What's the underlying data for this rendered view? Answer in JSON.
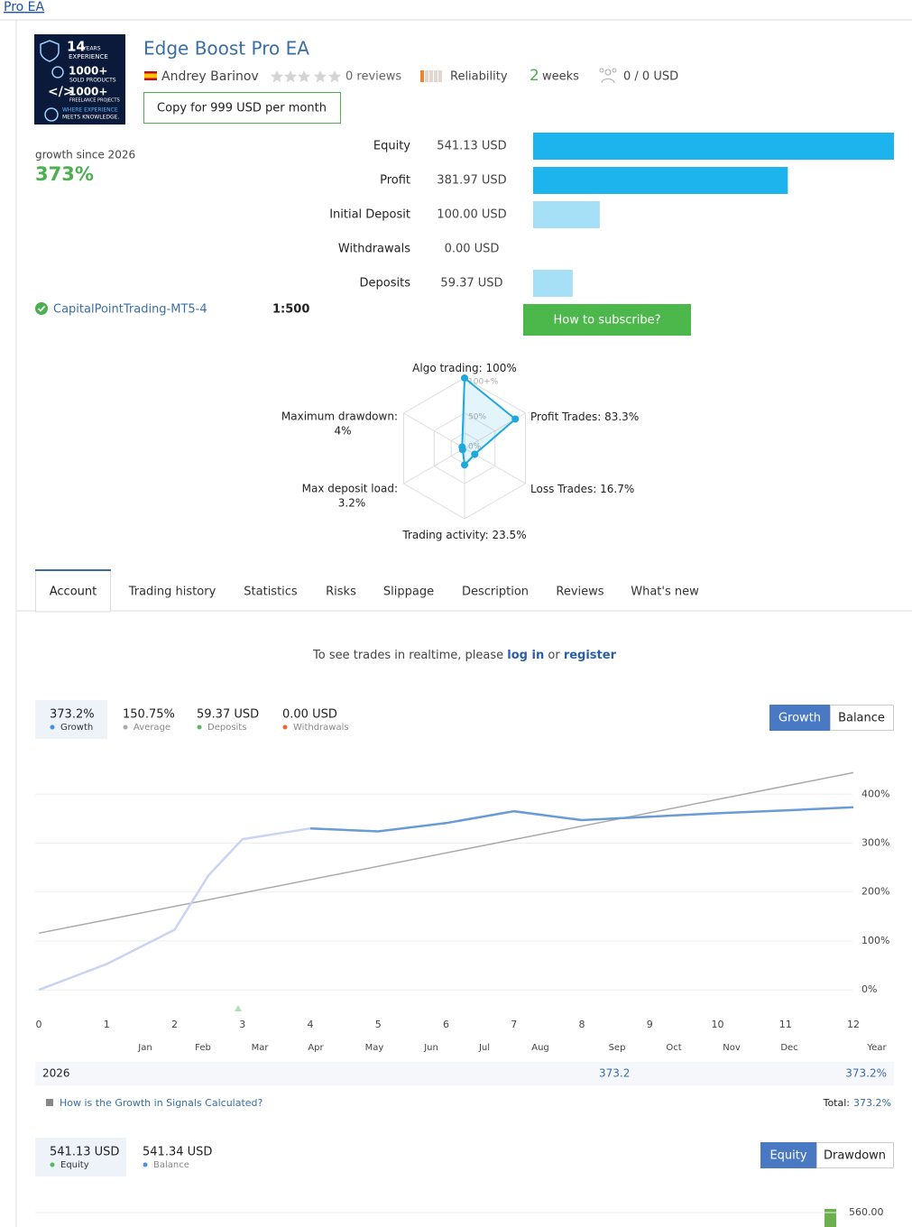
{
  "breadcrumb": "Pro EA",
  "logo": {
    "years_num": "14",
    "years": "YEARS",
    "experience": "EXPERIENCE",
    "sold_num": "1000+",
    "sold": "SOLD PRODUCTS",
    "freelance_num": "1000+",
    "freelance": "FREELANCE PROJECTS",
    "motto_1": "WHERE EXPERIENCE",
    "motto_2": "MEETS KNOWLEDGE."
  },
  "header": {
    "title": "Edge Boost Pro EA",
    "author": "Andrey Barinov",
    "reviews": "0 reviews",
    "reliability": "Reliability",
    "weeks_num": "2",
    "weeks": "weeks",
    "subscribers": "0 / 0 USD",
    "copy_button": "Copy for 999 USD per month"
  },
  "growth_since": {
    "label": "growth since 2026",
    "value": "373%"
  },
  "balance_bars": {
    "rows": [
      {
        "label": "Equity",
        "value": 541.13,
        "value_label": "541.13 USD",
        "color": "#1db4ee"
      },
      {
        "label": "Profit",
        "value": 381.97,
        "value_label": "381.97 USD",
        "color": "#1db4ee"
      },
      {
        "label": "Initial Deposit",
        "value": 100.0,
        "value_label": "100.00 USD",
        "color": "#a6e0f6"
      },
      {
        "label": "Withdrawals",
        "value": 0.0,
        "value_label": "0.00 USD",
        "color": "#a6e0f6"
      },
      {
        "label": "Deposits",
        "value": 59.37,
        "value_label": "59.37 USD",
        "color": "#a6e0f6"
      }
    ]
  },
  "account": {
    "server": "CapitalPointTrading-MT5-4",
    "leverage": "1:500",
    "subscribe_button": "How to subscribe?"
  },
  "radar": {
    "color": "#1fa8dc",
    "ring_labels": [
      "100+%",
      "50%",
      "0%"
    ],
    "axes": [
      {
        "label": "Algo trading:",
        "value": 100,
        "value_label": "100%"
      },
      {
        "label": "Profit Trades:",
        "value": 83.3,
        "value_label": "83.3%"
      },
      {
        "label": "Loss Trades:",
        "value": 16.7,
        "value_label": "16.7%"
      },
      {
        "label": "Trading activity:",
        "value": 23.5,
        "value_label": "23.5%"
      },
      {
        "label": "Max deposit load:",
        "value": 3.2,
        "value_label": "3.2%"
      },
      {
        "label": "Maximum drawdown:",
        "value": 4,
        "value_label": "4%"
      }
    ]
  },
  "tabs": [
    "Account",
    "Trading history",
    "Statistics",
    "Risks",
    "Slippage",
    "Description",
    "Reviews",
    "What's new"
  ],
  "active_tab": 0,
  "login_notice": {
    "text": "To see trades in realtime, please",
    "login": "log in",
    "or": "or",
    "register": "register"
  },
  "growth_summary": {
    "items": [
      {
        "value": "373.2%",
        "label": "Growth",
        "color": "#4a90e2"
      },
      {
        "value": "150.75%",
        "label": "Average",
        "color": "#aaaaaa"
      },
      {
        "value": "59.37 USD",
        "label": "Deposits",
        "color": "#5cb85c"
      },
      {
        "value": "0.00 USD",
        "label": "Withdrawals",
        "color": "#e8663d"
      }
    ],
    "buttons": [
      "Growth",
      "Balance"
    ]
  },
  "growth_chart": {
    "type": "line",
    "xlim": [
      0,
      12
    ],
    "xticks": [
      0,
      1,
      2,
      3,
      4,
      5,
      6,
      7,
      8,
      9,
      10,
      11,
      12
    ],
    "ylim": [
      -42,
      465
    ],
    "yticks": [
      {
        "value": 0,
        "label": "0%"
      },
      {
        "value": 100,
        "label": "100%"
      },
      {
        "value": 200,
        "label": "200%"
      },
      {
        "value": 300,
        "label": "300%"
      },
      {
        "value": 400,
        "label": "400%"
      }
    ],
    "months": [
      "Jan",
      "Feb",
      "Mar",
      "Apr",
      "May",
      "Jun",
      "Jul",
      "Aug",
      "Sep",
      "Oct",
      "Nov",
      "Dec",
      "Year"
    ],
    "series": [
      {
        "color": "#c9d3f2",
        "x": [
          0,
          1,
          2,
          2.5,
          3,
          4
        ],
        "values": [
          0,
          53,
          123,
          234,
          308,
          330
        ]
      },
      {
        "color": "#6a9ad8",
        "x": [
          4,
          5,
          6,
          7,
          8,
          9,
          10,
          11,
          12
        ],
        "values": [
          330,
          324,
          341,
          365,
          347,
          354,
          361,
          367,
          373.2
        ]
      }
    ],
    "trend": {
      "color": "#aaaaaa",
      "x": [
        0,
        12
      ],
      "values": [
        116,
        444
      ]
    }
  },
  "year_row": {
    "year": "2026",
    "sep": "373.2",
    "total": "373.2%"
  },
  "help": {
    "link": "How is the Growth in Signals Calculated?",
    "total_label": "Total:",
    "total": "373.2%"
  },
  "equity_summary": {
    "items": [
      {
        "value": "541.13 USD",
        "label": "Equity",
        "color": "#5cb85c"
      },
      {
        "value": "541.34 USD",
        "label": "Balance",
        "color": "#4a90e2"
      }
    ],
    "buttons": [
      "Equity",
      "Drawdown"
    ]
  },
  "equity_chart": {
    "yticks": [
      {
        "value": 560,
        "label": "560.00"
      }
    ]
  }
}
